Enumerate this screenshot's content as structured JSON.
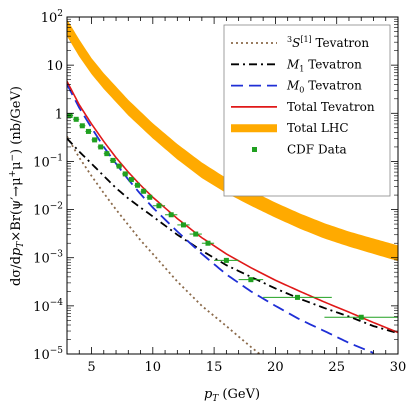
{
  "chart_data": {
    "type": "line",
    "title": "",
    "xlabel": "p_T (GeV)",
    "ylabel": "dσ/dp_T×Br(ψ′→μ⁺μ⁻) (nb/GeV)",
    "xlim": [
      3,
      30
    ],
    "ylim": [
      1e-05,
      100
    ],
    "yscale": "log",
    "grid": false,
    "legend_position": "top-right",
    "x_ticks": [
      5,
      10,
      15,
      20,
      25,
      30
    ],
    "x_tick_labels": [
      "5",
      "10",
      "15",
      "20",
      "25",
      "30"
    ],
    "y_ticks": [
      1e-05,
      0.0001,
      0.001,
      0.01,
      0.1,
      1,
      10,
      100
    ],
    "y_tick_labels": [
      "10^-5",
      "10^-4",
      "10^-3",
      "10^-2",
      "10^-1",
      "1",
      "10",
      "10^2"
    ],
    "series": [
      {
        "name": "³S₁^[1] Tevatron",
        "legend_main": "S",
        "legend_pre": "3",
        "legend_sup": "[1]",
        "legend_suffix": "Tevatron",
        "style": "dotted",
        "color": "#8b6a4a",
        "x": [
          3,
          4,
          5,
          6,
          7,
          8,
          9,
          10,
          12,
          14,
          16,
          18,
          20
        ],
        "y": [
          0.33,
          0.12,
          0.05,
          0.022,
          0.01,
          0.0048,
          0.0023,
          0.0012,
          0.00032,
          0.0001,
          3.8e-05,
          1.4e-05,
          5.5e-06
        ]
      },
      {
        "name": "M₁ Tevatron",
        "legend_main": "M",
        "legend_sub": "1",
        "legend_suffix": "Tevatron",
        "style": "dashdot",
        "color": "#000000",
        "x": [
          3,
          4,
          5,
          6,
          7,
          8,
          9,
          10,
          12,
          14,
          16,
          18,
          20,
          22,
          24,
          26,
          28,
          30
        ],
        "y": [
          0.3,
          0.16,
          0.09,
          0.05,
          0.028,
          0.017,
          0.011,
          0.0072,
          0.003,
          0.0014,
          0.0007,
          0.0004,
          0.00023,
          0.00014,
          9e-05,
          6e-05,
          3.8e-05,
          2.7e-05
        ]
      },
      {
        "name": "M₀ Tevatron",
        "legend_main": "M",
        "legend_sub": "0",
        "legend_suffix": "Tevatron",
        "style": "dashed",
        "color": "#1f2fd6",
        "x": [
          3,
          4,
          5,
          6,
          7,
          8,
          9,
          10,
          12,
          14,
          16,
          18,
          20,
          22,
          24,
          26,
          28
        ],
        "y": [
          4,
          1.3,
          0.5,
          0.2,
          0.09,
          0.042,
          0.021,
          0.011,
          0.0035,
          0.0012,
          0.00045,
          0.0002,
          0.0001,
          5.2e-05,
          3e-05,
          1.7e-05,
          1.05e-05
        ]
      },
      {
        "name": "Total Tevatron",
        "legend_main": "Total Tevatron",
        "style": "solid",
        "color": "#e01818",
        "x": [
          3,
          4,
          5,
          6,
          7,
          8,
          9,
          10,
          12,
          14,
          16,
          18,
          20,
          22,
          24,
          26,
          28,
          30
        ],
        "y": [
          4.6,
          1.5,
          0.6,
          0.26,
          0.12,
          0.06,
          0.032,
          0.018,
          0.0065,
          0.0026,
          0.0012,
          0.00062,
          0.00034,
          0.0002,
          0.00012,
          7.4e-05,
          4.5e-05,
          2.8e-05
        ]
      },
      {
        "name": "Total LHC",
        "legend_main": "Total LHC",
        "style": "band",
        "color": "#ffaa00",
        "x": [
          3,
          4,
          5,
          6,
          8,
          10,
          12,
          14,
          16,
          18,
          20,
          22,
          24,
          26,
          28,
          30
        ],
        "y_low": [
          40,
          15,
          6.5,
          3.2,
          0.9,
          0.3,
          0.11,
          0.045,
          0.022,
          0.012,
          0.0068,
          0.004,
          0.0025,
          0.0017,
          0.0012,
          0.00085
        ],
        "y_high": [
          90,
          34,
          14,
          6.8,
          1.9,
          0.62,
          0.23,
          0.095,
          0.045,
          0.025,
          0.014,
          0.0083,
          0.0052,
          0.0035,
          0.0025,
          0.0018
        ]
      }
    ],
    "data_points": {
      "name": "CDF Data",
      "color": "#20a020",
      "points": [
        {
          "x": 3.25,
          "y": 0.9,
          "xerr": 0.25
        },
        {
          "x": 3.75,
          "y": 0.75,
          "xerr": 0.25
        },
        {
          "x": 4.25,
          "y": 0.55,
          "xerr": 0.25
        },
        {
          "x": 4.75,
          "y": 0.42,
          "xerr": 0.25
        },
        {
          "x": 5.25,
          "y": 0.28,
          "xerr": 0.25
        },
        {
          "x": 5.75,
          "y": 0.2,
          "xerr": 0.25
        },
        {
          "x": 6.25,
          "y": 0.145,
          "xerr": 0.25
        },
        {
          "x": 6.75,
          "y": 0.105,
          "xerr": 0.25
        },
        {
          "x": 7.25,
          "y": 0.08,
          "xerr": 0.25
        },
        {
          "x": 7.75,
          "y": 0.055,
          "xerr": 0.25
        },
        {
          "x": 8.25,
          "y": 0.042,
          "xerr": 0.25
        },
        {
          "x": 8.75,
          "y": 0.032,
          "xerr": 0.25
        },
        {
          "x": 9.25,
          "y": 0.024,
          "xerr": 0.25
        },
        {
          "x": 9.75,
          "y": 0.018,
          "xerr": 0.25
        },
        {
          "x": 10.5,
          "y": 0.012,
          "xerr": 0.5
        },
        {
          "x": 11.5,
          "y": 0.0078,
          "xerr": 0.5
        },
        {
          "x": 12.5,
          "y": 0.0048,
          "xerr": 0.5
        },
        {
          "x": 13.5,
          "y": 0.0031,
          "xerr": 0.5
        },
        {
          "x": 14.5,
          "y": 0.002,
          "xerr": 0.5
        },
        {
          "x": 16,
          "y": 0.00088,
          "xerr": 1.0
        },
        {
          "x": 18,
          "y": 0.00035,
          "xerr": 1.0
        },
        {
          "x": 21.8,
          "y": 0.00015,
          "xerr": 2.8
        },
        {
          "x": 27,
          "y": 5.8e-05,
          "xerr": 3.0
        }
      ]
    }
  }
}
